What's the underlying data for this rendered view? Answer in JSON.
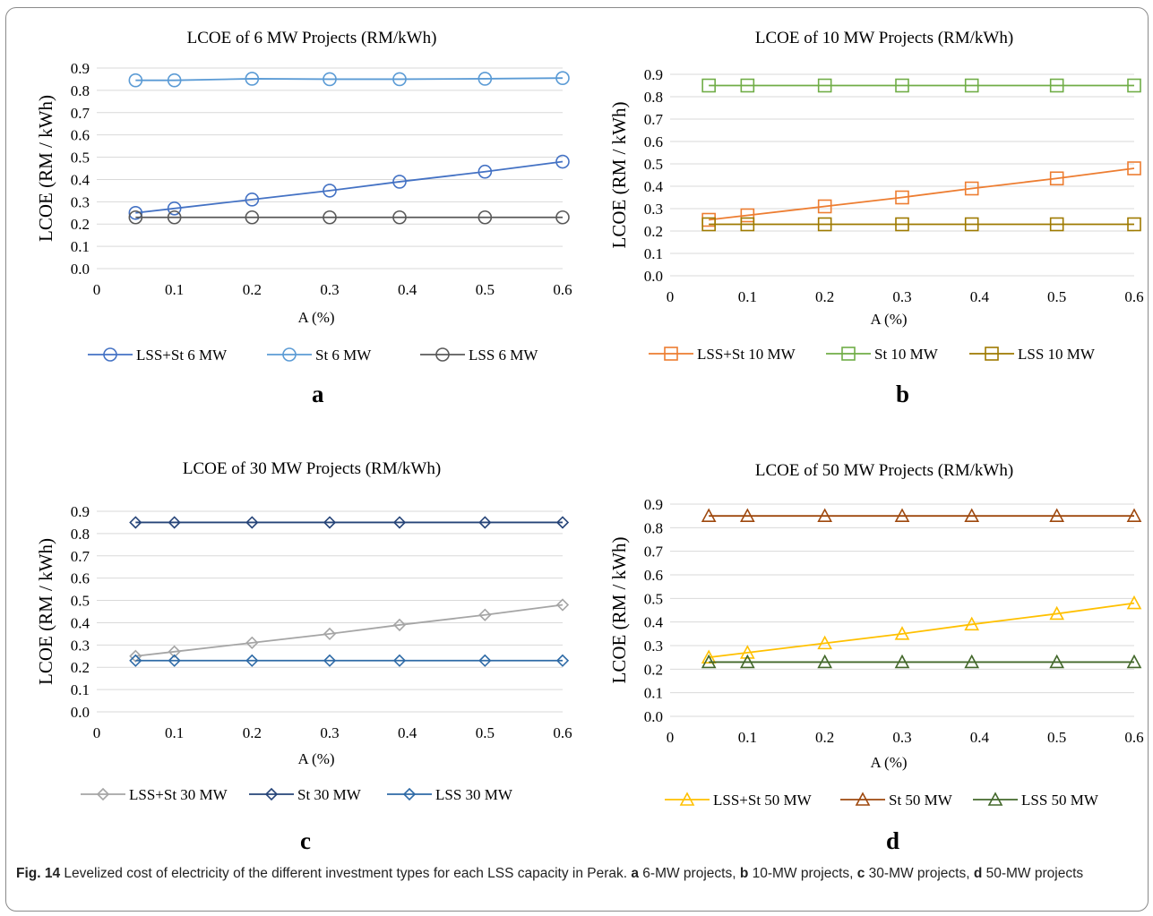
{
  "figure": {
    "caption_label": "Fig. 14",
    "caption_parts": [
      {
        "text": "Levelized cost of electricity of the different investment types for each LSS capacity in Perak. ",
        "bold": false
      },
      {
        "text": "a",
        "bold": true
      },
      {
        "text": " 6-MW projects, ",
        "bold": false
      },
      {
        "text": "b",
        "bold": true
      },
      {
        "text": " 10-MW projects, ",
        "bold": false
      },
      {
        "text": "c",
        "bold": true
      },
      {
        "text": " 30-MW projects, ",
        "bold": false
      },
      {
        "text": "d",
        "bold": true
      },
      {
        "text": " 50-MW projects",
        "bold": false
      }
    ]
  },
  "chart_data": [
    {
      "panel": "a",
      "type": "line",
      "title": "LCOE of 6 MW Projects (RM/kWh)",
      "xlabel": "A (%)",
      "ylabel": "LCOE (RM / kWh)",
      "xlim": [
        0,
        0.6
      ],
      "ylim": [
        0,
        0.9
      ],
      "xticks": [
        "0",
        "0.1",
        "0.2",
        "0.3",
        "0.4",
        "0.5",
        "0.6"
      ],
      "yticks": [
        "0.0",
        "0.1",
        "0.2",
        "0.3",
        "0.4",
        "0.5",
        "0.6",
        "0.7",
        "0.8",
        "0.9"
      ],
      "marker": "circle",
      "grid": true,
      "legend": "bottom",
      "x": [
        0.05,
        0.1,
        0.2,
        0.3,
        0.39,
        0.5,
        0.6
      ],
      "series": [
        {
          "name": "LSS+St 6 MW",
          "color": "#4472C4",
          "values": [
            0.25,
            0.27,
            0.31,
            0.35,
            0.39,
            0.435,
            0.48
          ]
        },
        {
          "name": "St 6 MW",
          "color": "#5B9BD5",
          "values": [
            0.845,
            0.845,
            0.852,
            0.85,
            0.85,
            0.852,
            0.855
          ]
        },
        {
          "name": "LSS 6 MW",
          "color": "#595959",
          "values": [
            0.23,
            0.23,
            0.23,
            0.23,
            0.23,
            0.23,
            0.23
          ]
        }
      ]
    },
    {
      "panel": "b",
      "type": "line",
      "title": "LCOE of 10 MW Projects  (RM/kWh)",
      "xlabel": "A (%)",
      "ylabel": "LCOE (RM / kWh)",
      "xlim": [
        0,
        0.6
      ],
      "ylim": [
        0,
        0.9
      ],
      "xticks": [
        "0",
        "0.1",
        "0.2",
        "0.3",
        "0.4",
        "0.5",
        "0.6"
      ],
      "yticks": [
        "0.0",
        "0.1",
        "0.2",
        "0.3",
        "0.4",
        "0.5",
        "0.6",
        "0.7",
        "0.8",
        "0.9"
      ],
      "marker": "square",
      "grid": true,
      "legend": "bottom",
      "x": [
        0.05,
        0.1,
        0.2,
        0.3,
        0.39,
        0.5,
        0.6
      ],
      "series": [
        {
          "name": "LSS+St 10 MW",
          "color": "#ED7D31",
          "values": [
            0.25,
            0.27,
            0.31,
            0.35,
            0.39,
            0.435,
            0.48
          ]
        },
        {
          "name": "St 10 MW",
          "color": "#70AD47",
          "values": [
            0.85,
            0.85,
            0.85,
            0.85,
            0.85,
            0.85,
            0.85
          ]
        },
        {
          "name": "LSS 10 MW",
          "color": "#9E7A00",
          "values": [
            0.23,
            0.23,
            0.23,
            0.23,
            0.23,
            0.23,
            0.23
          ]
        }
      ]
    },
    {
      "panel": "c",
      "type": "line",
      "title": "LCOE of 30 MW Projects  (RM/kWh)",
      "xlabel": "A (%)",
      "ylabel": "LCOE (RM / kWh)",
      "xlim": [
        0,
        0.6
      ],
      "ylim": [
        0,
        0.9
      ],
      "xticks": [
        "0",
        "0.1",
        "0.2",
        "0.3",
        "0.4",
        "0.5",
        "0.6"
      ],
      "yticks": [
        "0.0",
        "0.1",
        "0.2",
        "0.3",
        "0.4",
        "0.5",
        "0.6",
        "0.7",
        "0.8",
        "0.9"
      ],
      "marker": "diamond",
      "grid": true,
      "legend": "bottom",
      "x": [
        0.05,
        0.1,
        0.2,
        0.3,
        0.39,
        0.5,
        0.6
      ],
      "series": [
        {
          "name": "LSS+St 30 MW",
          "color": "#A5A5A5",
          "values": [
            0.25,
            0.27,
            0.31,
            0.35,
            0.39,
            0.435,
            0.48
          ]
        },
        {
          "name": "St 30 MW",
          "color": "#264478",
          "values": [
            0.85,
            0.85,
            0.85,
            0.85,
            0.85,
            0.85,
            0.85
          ]
        },
        {
          "name": "LSS 30 MW",
          "color": "#2E6AA6",
          "values": [
            0.23,
            0.23,
            0.23,
            0.23,
            0.23,
            0.23,
            0.23
          ]
        }
      ]
    },
    {
      "panel": "d",
      "type": "line",
      "title": "LCOE of 50 MW Projects  (RM/kWh)",
      "xlabel": "A (%)",
      "ylabel": "LCOE (RM / kWh)",
      "xlim": [
        0,
        0.6
      ],
      "ylim": [
        0,
        0.9
      ],
      "xticks": [
        "0",
        "0.1",
        "0.2",
        "0.3",
        "0.4",
        "0.5",
        "0.6"
      ],
      "yticks": [
        "0.0",
        "0.1",
        "0.2",
        "0.3",
        "0.4",
        "0.5",
        "0.6",
        "0.7",
        "0.8",
        "0.9"
      ],
      "marker": "triangle",
      "grid": true,
      "legend": "bottom",
      "x": [
        0.05,
        0.1,
        0.2,
        0.3,
        0.39,
        0.5,
        0.6
      ],
      "series": [
        {
          "name": "LSS+St 50 MW",
          "color": "#FFC000",
          "values": [
            0.25,
            0.27,
            0.31,
            0.35,
            0.39,
            0.435,
            0.48
          ]
        },
        {
          "name": "St 50 MW",
          "color": "#9E480E",
          "values": [
            0.85,
            0.85,
            0.85,
            0.85,
            0.85,
            0.85,
            0.85
          ]
        },
        {
          "name": "LSS 50 MW",
          "color": "#43682B",
          "values": [
            0.23,
            0.23,
            0.23,
            0.23,
            0.23,
            0.23,
            0.23
          ]
        }
      ]
    }
  ]
}
